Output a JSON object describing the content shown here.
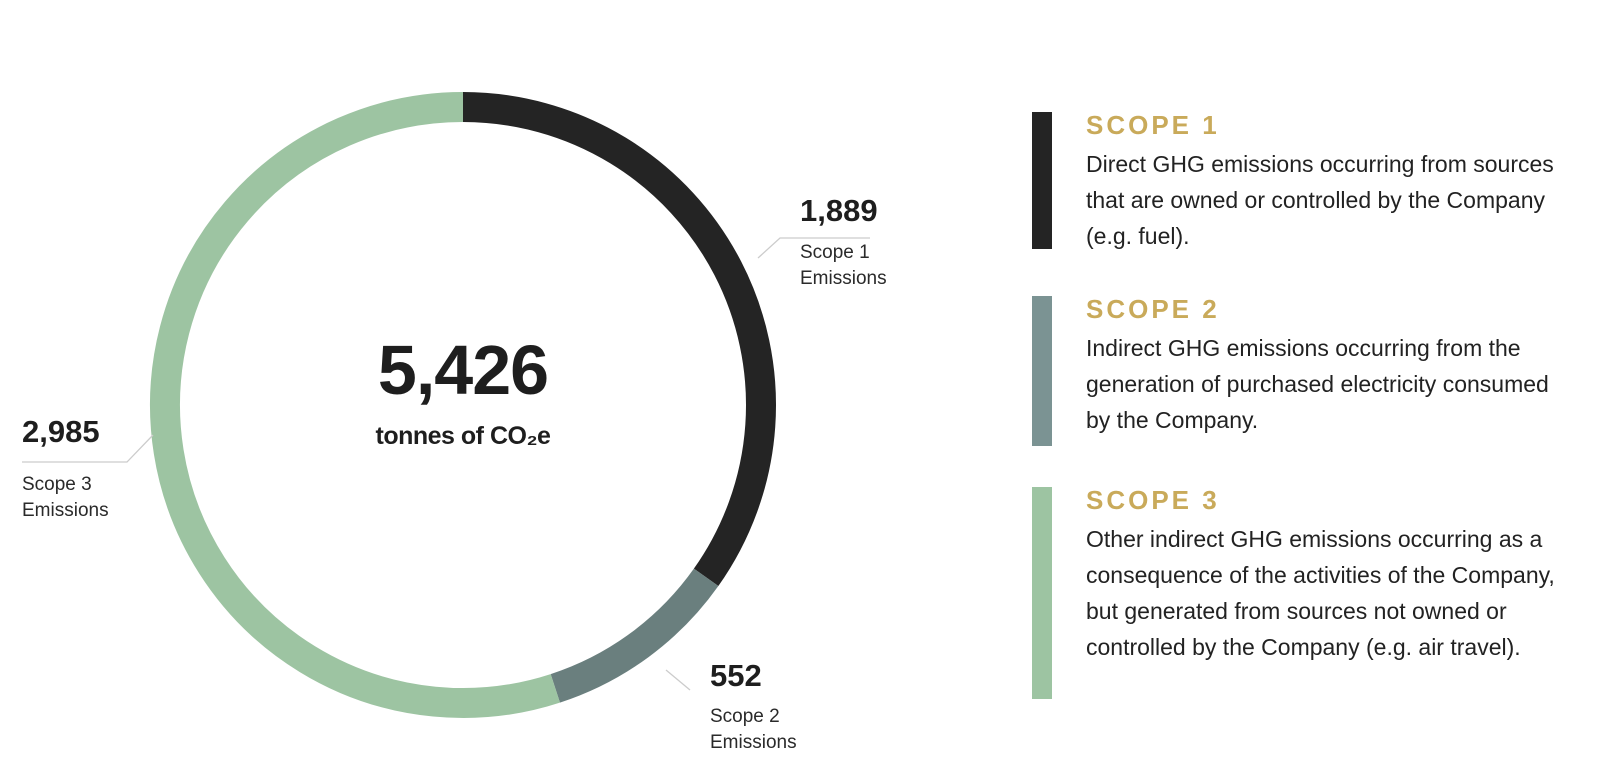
{
  "chart_data": {
    "type": "pie",
    "style": "donut",
    "total": {
      "value": "5,426",
      "unit": "tonnes of CO₂e"
    },
    "series": [
      {
        "name": "Scope 1",
        "value": 1889,
        "value_label": "1,889",
        "label": "Scope 1 Emissions",
        "color": "#242424"
      },
      {
        "name": "Scope 2",
        "value": 552,
        "value_label": "552",
        "label": "Scope 2 Emissions",
        "color": "#6a7f7e"
      },
      {
        "name": "Scope 3",
        "value": 2985,
        "value_label": "2,985",
        "label": "Scope 3 Emissions",
        "color": "#9dc4a2"
      }
    ],
    "legend_placement": "right"
  },
  "legend": [
    {
      "title": "SCOPE 1",
      "description": "Direct GHG emissions occurring from sources that are owned or controlled by the Company (e.g. fuel).",
      "color": "#242424"
    },
    {
      "title": "SCOPE 2",
      "description": "Indirect GHG emissions occurring from the generation of purchased electricity consumed by the Company.",
      "color": "#7b9393"
    },
    {
      "title": "SCOPE 3",
      "description": "Other indirect GHG emissions occurring as a consequence of the activities of the Company, but generated from sources not owned or controlled by the Company (e.g. air travel).",
      "color": "#9dc4a2"
    }
  ],
  "colors": {
    "accent_title": "#c9aa5a",
    "text": "#222222",
    "leader_line": "#cccccc"
  }
}
